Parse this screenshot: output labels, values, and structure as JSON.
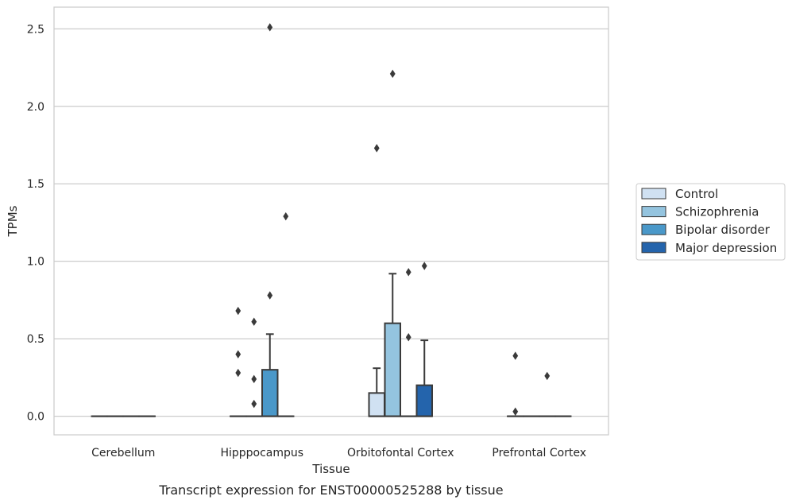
{
  "chart_data": {
    "type": "box",
    "title": "",
    "caption": "Transcript expression for ENST00000525288 by tissue",
    "xlabel": "Tissue",
    "ylabel": "TPMs",
    "ylim": [
      -0.12,
      2.64
    ],
    "yticks": [
      "0.0",
      "0.5",
      "1.0",
      "1.5",
      "2.0",
      "2.5"
    ],
    "ytick_values": [
      0.0,
      0.5,
      1.0,
      1.5,
      2.0,
      2.5
    ],
    "grid": "horizontal",
    "legend_position": "right",
    "categories": [
      "Cerebellum",
      "Hipppocampus",
      "Orbitofontal Cortex",
      "Prefrontal Cortex"
    ],
    "series": [
      {
        "name": "Control",
        "color": "#d0e1f2",
        "boxes": [
          {
            "q1": 0,
            "median": 0,
            "q3": 0,
            "whisker_low": 0,
            "whisker_high": 0,
            "outliers": []
          },
          {
            "q1": 0,
            "median": 0,
            "q3": 0,
            "whisker_low": 0,
            "whisker_high": 0,
            "outliers": [
              0.68,
              0.4,
              0.28
            ]
          },
          {
            "q1": 0,
            "median": 0,
            "q3": 0.15,
            "whisker_low": 0,
            "whisker_high": 0.31,
            "outliers": [
              1.73
            ]
          },
          {
            "q1": 0,
            "median": 0,
            "q3": 0,
            "whisker_low": 0,
            "whisker_high": 0,
            "outliers": [
              0.39,
              0.03
            ]
          }
        ]
      },
      {
        "name": "Schizophrenia",
        "color": "#94c4df",
        "boxes": [
          {
            "q1": 0,
            "median": 0,
            "q3": 0,
            "whisker_low": 0,
            "whisker_high": 0,
            "outliers": []
          },
          {
            "q1": 0,
            "median": 0,
            "q3": 0,
            "whisker_low": 0,
            "whisker_high": 0,
            "outliers": [
              0.61,
              0.24,
              0.08
            ]
          },
          {
            "q1": 0,
            "median": 0,
            "q3": 0.6,
            "whisker_low": 0,
            "whisker_high": 0.92,
            "outliers": [
              2.21
            ]
          },
          {
            "q1": 0,
            "median": 0,
            "q3": 0,
            "whisker_low": 0,
            "whisker_high": 0,
            "outliers": []
          }
        ]
      },
      {
        "name": "Bipolar disorder",
        "color": "#4a98c9",
        "boxes": [
          {
            "q1": 0,
            "median": 0,
            "q3": 0,
            "whisker_low": 0,
            "whisker_high": 0,
            "outliers": []
          },
          {
            "q1": 0,
            "median": 0,
            "q3": 0.3,
            "whisker_low": 0,
            "whisker_high": 0.53,
            "outliers": [
              2.51,
              0.78
            ]
          },
          {
            "q1": 0,
            "median": 0,
            "q3": 0,
            "whisker_low": 0,
            "whisker_high": 0,
            "outliers": [
              0.93,
              0.51
            ]
          },
          {
            "q1": 0,
            "median": 0,
            "q3": 0,
            "whisker_low": 0,
            "whisker_high": 0,
            "outliers": [
              0.26
            ]
          }
        ]
      },
      {
        "name": "Major depression",
        "color": "#2464ac",
        "boxes": [
          {
            "q1": 0,
            "median": 0,
            "q3": 0,
            "whisker_low": 0,
            "whisker_high": 0,
            "outliers": []
          },
          {
            "q1": 0,
            "median": 0,
            "q3": 0,
            "whisker_low": 0,
            "whisker_high": 0,
            "outliers": [
              1.29
            ]
          },
          {
            "q1": 0,
            "median": 0,
            "q3": 0.2,
            "whisker_low": 0,
            "whisker_high": 0.49,
            "outliers": [
              0.97
            ]
          },
          {
            "q1": 0,
            "median": 0,
            "q3": 0,
            "whisker_low": 0,
            "whisker_high": 0,
            "outliers": []
          }
        ]
      }
    ]
  }
}
